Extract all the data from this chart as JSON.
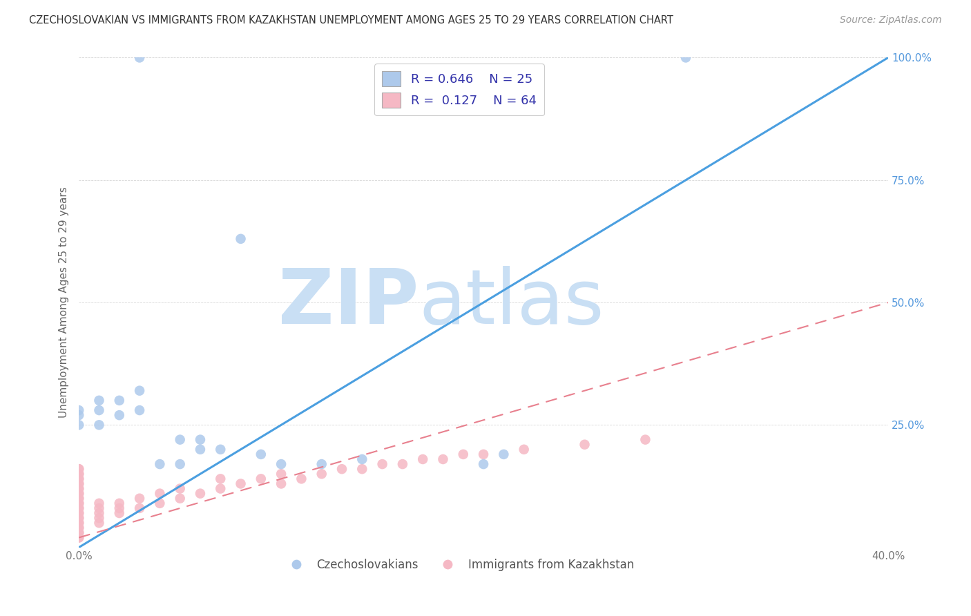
{
  "title": "CZECHOSLOVAKIAN VS IMMIGRANTS FROM KAZAKHSTAN UNEMPLOYMENT AMONG AGES 25 TO 29 YEARS CORRELATION CHART",
  "source": "Source: ZipAtlas.com",
  "ylabel": "Unemployment Among Ages 25 to 29 years",
  "xlim": [
    0,
    0.4
  ],
  "ylim": [
    0,
    1.0
  ],
  "xtick_positions": [
    0.0,
    0.1,
    0.2,
    0.3,
    0.4
  ],
  "xtick_labels": [
    "0.0%",
    "",
    "",
    "",
    "40.0%"
  ],
  "ytick_positions": [
    0.0,
    0.25,
    0.5,
    0.75,
    1.0
  ],
  "ytick_labels": [
    "",
    "25.0%",
    "50.0%",
    "75.0%",
    "100.0%"
  ],
  "legend_R1": "R = 0.646",
  "legend_N1": "N = 25",
  "legend_R2": "R =  0.127",
  "legend_N2": "N = 64",
  "blue_scatter_color": "#adc9eb",
  "pink_scatter_color": "#f5b8c4",
  "blue_line_color": "#4b9fe0",
  "pink_line_color": "#e8808e",
  "watermark_zip": "ZIP",
  "watermark_atlas": "atlas",
  "watermark_color": "#c9dff4",
  "background_color": "#ffffff",
  "blue_line_x": [
    0.0,
    0.4
  ],
  "blue_line_y": [
    0.0,
    1.0
  ],
  "pink_line_x": [
    0.0,
    0.4
  ],
  "pink_line_y": [
    0.02,
    0.5
  ],
  "czecho_x": [
    0.03,
    0.3,
    0.0,
    0.0,
    0.01,
    0.01,
    0.02,
    0.03,
    0.04,
    0.05,
    0.06,
    0.08,
    0.12,
    0.14,
    0.2,
    0.21,
    0.0,
    0.01,
    0.02,
    0.03,
    0.05,
    0.06,
    0.07,
    0.09,
    0.1
  ],
  "czecho_y": [
    1.0,
    1.0,
    0.27,
    0.28,
    0.28,
    0.3,
    0.3,
    0.32,
    0.17,
    0.17,
    0.2,
    0.63,
    0.17,
    0.18,
    0.17,
    0.19,
    0.25,
    0.25,
    0.27,
    0.28,
    0.22,
    0.22,
    0.2,
    0.19,
    0.17
  ],
  "kazakh_x": [
    0.0,
    0.0,
    0.0,
    0.0,
    0.0,
    0.0,
    0.0,
    0.0,
    0.0,
    0.0,
    0.0,
    0.0,
    0.0,
    0.0,
    0.0,
    0.0,
    0.0,
    0.0,
    0.0,
    0.0,
    0.0,
    0.0,
    0.0,
    0.0,
    0.0,
    0.0,
    0.0,
    0.0,
    0.0,
    0.0,
    0.01,
    0.01,
    0.01,
    0.01,
    0.01,
    0.02,
    0.02,
    0.02,
    0.03,
    0.03,
    0.04,
    0.04,
    0.05,
    0.05,
    0.06,
    0.07,
    0.07,
    0.08,
    0.09,
    0.1,
    0.1,
    0.11,
    0.12,
    0.13,
    0.14,
    0.15,
    0.16,
    0.17,
    0.18,
    0.19,
    0.2,
    0.22,
    0.25,
    0.28
  ],
  "kazakh_y": [
    0.02,
    0.02,
    0.03,
    0.03,
    0.04,
    0.04,
    0.05,
    0.05,
    0.06,
    0.06,
    0.07,
    0.07,
    0.08,
    0.08,
    0.09,
    0.09,
    0.1,
    0.1,
    0.11,
    0.11,
    0.12,
    0.12,
    0.13,
    0.13,
    0.14,
    0.14,
    0.15,
    0.15,
    0.16,
    0.16,
    0.05,
    0.06,
    0.07,
    0.08,
    0.09,
    0.07,
    0.08,
    0.09,
    0.08,
    0.1,
    0.09,
    0.11,
    0.1,
    0.12,
    0.11,
    0.12,
    0.14,
    0.13,
    0.14,
    0.13,
    0.15,
    0.14,
    0.15,
    0.16,
    0.16,
    0.17,
    0.17,
    0.18,
    0.18,
    0.19,
    0.19,
    0.2,
    0.21,
    0.22
  ]
}
